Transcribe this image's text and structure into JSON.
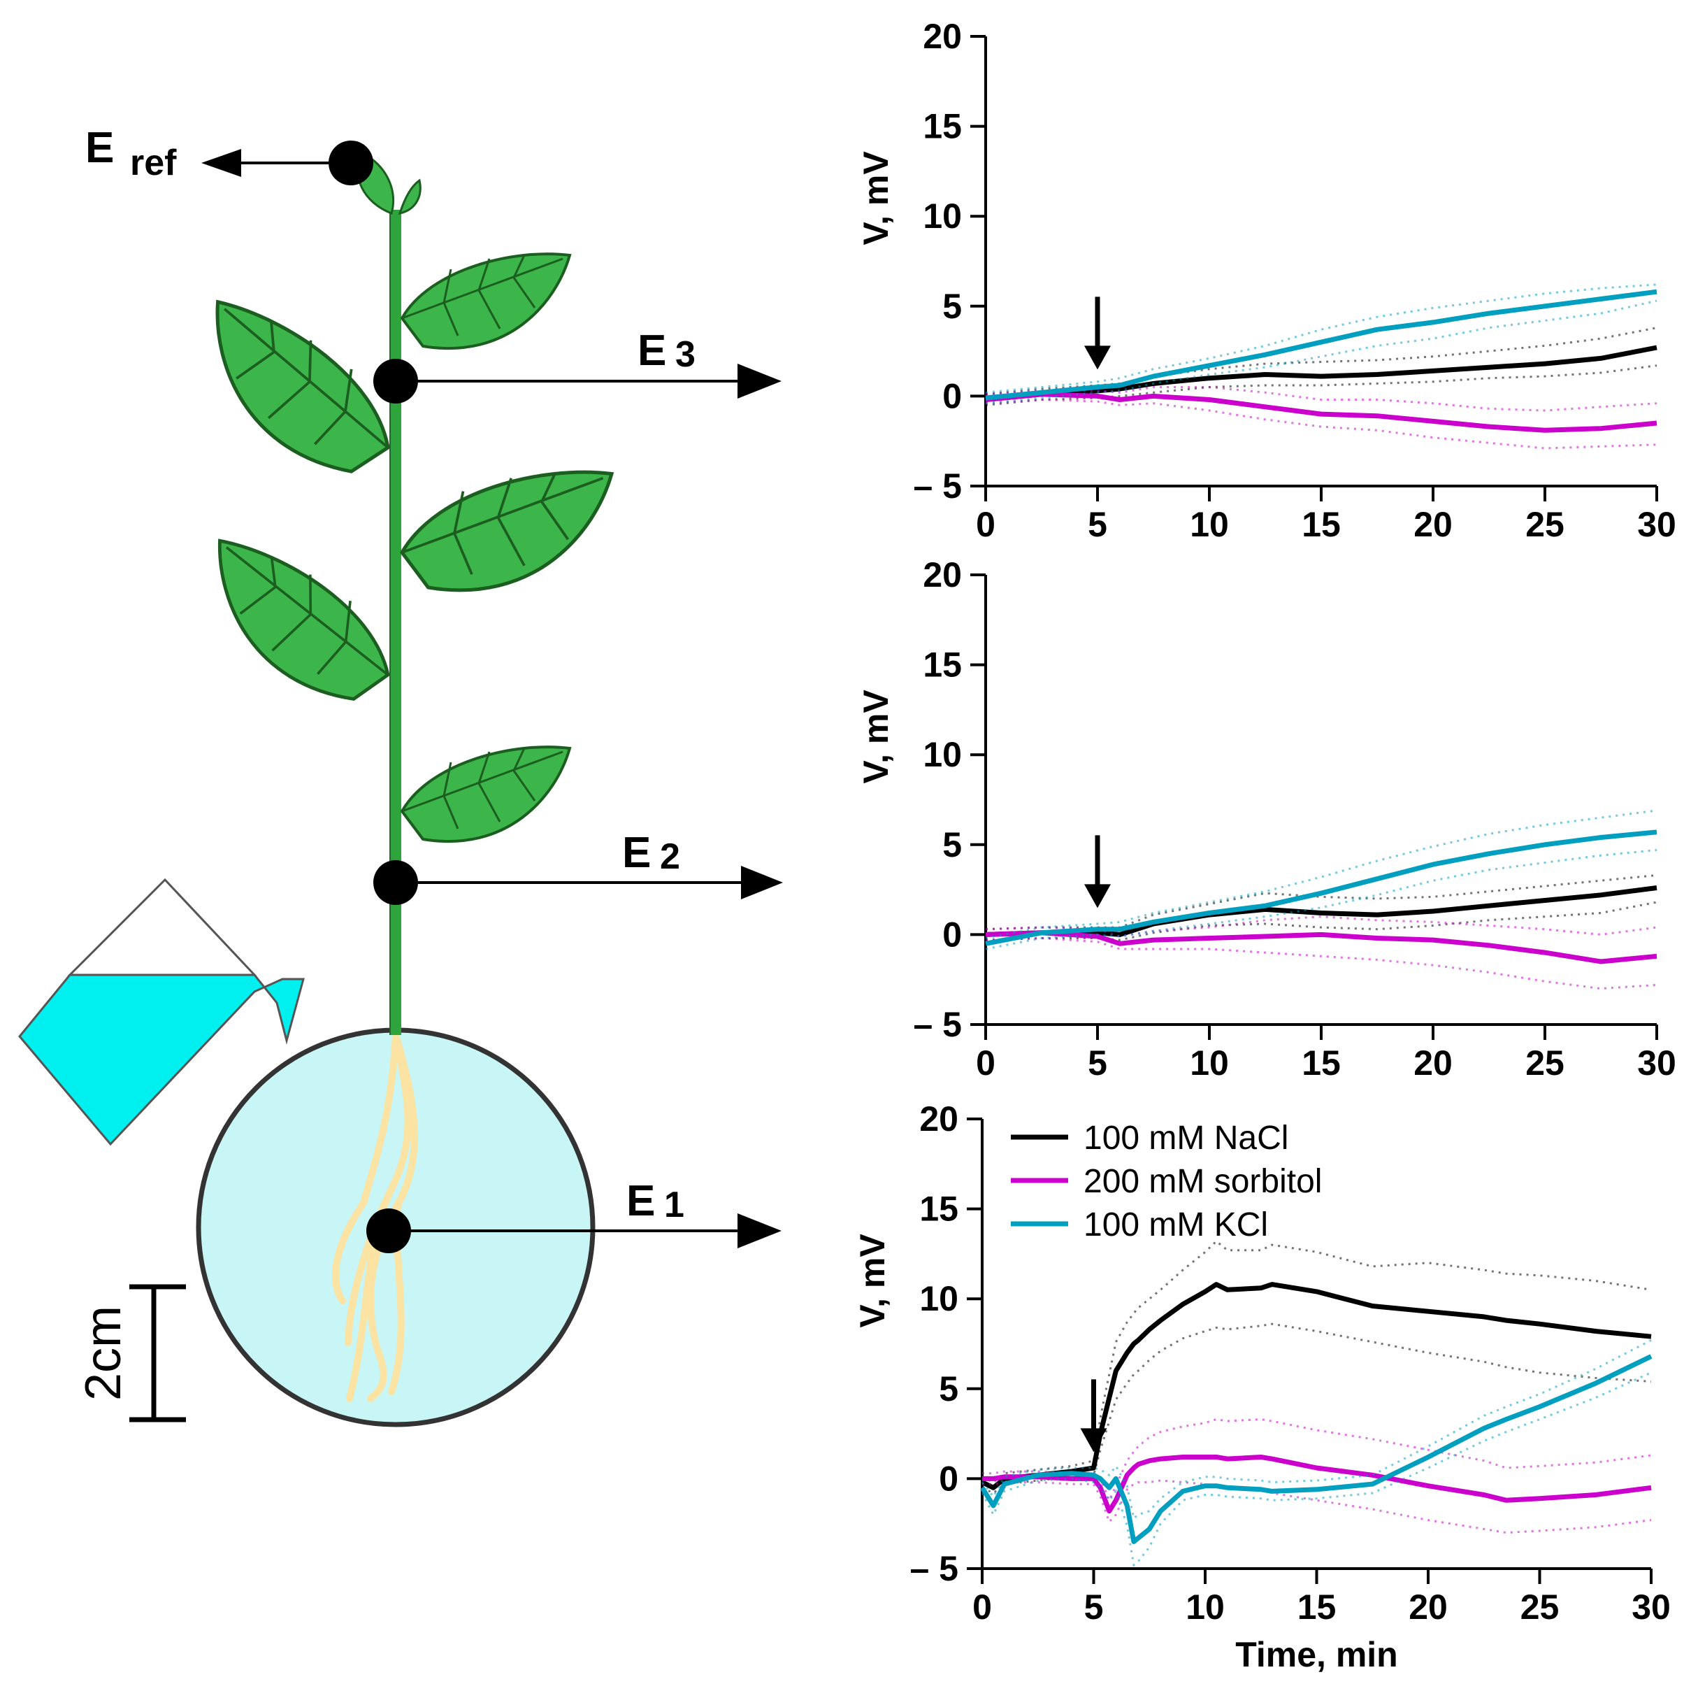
{
  "diagram": {
    "electrodes": [
      {
        "id": "ref",
        "main": "E",
        "sub": "ref"
      },
      {
        "id": "e3",
        "main": "E",
        "sub": "3"
      },
      {
        "id": "e2",
        "main": "E",
        "sub": "2"
      },
      {
        "id": "e1",
        "main": "E",
        "sub": "1"
      }
    ],
    "scale_bar_label": "2cm",
    "colors": {
      "leaf": "#3cb54a",
      "stem": "#2ea43c",
      "root": "#fbe3a4",
      "pot": "#c8f5f5",
      "solution": "#00f0f0"
    }
  },
  "legend": [
    {
      "label": "100 mM NaCl",
      "color": "#000000"
    },
    {
      "label": "200 mM sorbitol",
      "color": "#cc00cc"
    },
    {
      "label": "100 mM KCl",
      "color": "#009fbf"
    }
  ],
  "chart_data": [
    {
      "type": "line",
      "panel": "E3",
      "xlabel": "",
      "ylabel": "V, mV",
      "xlim": [
        0,
        30
      ],
      "ylim": [
        -5,
        20
      ],
      "xticks": [
        0,
        5,
        10,
        15,
        20,
        25,
        30
      ],
      "yticks": [
        -5,
        0,
        5,
        10,
        15,
        20
      ],
      "ytick_labels": [
        "– 5",
        "0",
        "5",
        "10",
        "15",
        "20"
      ],
      "stimulus_arrow_x": 5,
      "x": [
        0,
        2.5,
        5,
        6,
        7.5,
        10,
        12.5,
        15,
        17.5,
        20,
        22.5,
        25,
        27.5,
        30
      ],
      "series": [
        {
          "name": "100 mM NaCl",
          "color": "#000000",
          "values": [
            -0.2,
            0.1,
            0.3,
            0.4,
            0.7,
            1.0,
            1.2,
            1.1,
            1.2,
            1.4,
            1.6,
            1.8,
            2.1,
            2.7
          ],
          "lower": [
            -0.5,
            -0.2,
            -0.1,
            0.0,
            0.2,
            0.5,
            0.6,
            0.6,
            0.7,
            0.8,
            1.0,
            1.1,
            1.3,
            1.7
          ],
          "upper": [
            0.1,
            0.4,
            0.6,
            0.7,
            1.1,
            1.5,
            1.8,
            1.9,
            2.0,
            2.2,
            2.5,
            2.8,
            3.2,
            3.8
          ]
        },
        {
          "name": "200 mM sorbitol",
          "color": "#cc00cc",
          "values": [
            -0.2,
            0.1,
            0.0,
            -0.2,
            0.0,
            -0.2,
            -0.6,
            -1.0,
            -1.1,
            -1.4,
            -1.7,
            -1.9,
            -1.8,
            -1.5
          ],
          "lower": [
            -0.4,
            -0.2,
            -0.3,
            -0.5,
            -0.4,
            -0.8,
            -1.3,
            -1.7,
            -1.9,
            -2.3,
            -2.6,
            -2.9,
            -2.8,
            -2.7
          ],
          "upper": [
            0.1,
            0.3,
            0.3,
            0.2,
            0.5,
            0.5,
            0.2,
            -0.2,
            -0.2,
            -0.4,
            -0.7,
            -0.8,
            -0.6,
            -0.4
          ]
        },
        {
          "name": "100 mM KCl",
          "color": "#009fbf",
          "values": [
            -0.1,
            0.2,
            0.5,
            0.6,
            1.1,
            1.7,
            2.3,
            3.0,
            3.7,
            4.1,
            4.6,
            5.0,
            5.4,
            5.8
          ],
          "lower": [
            -0.4,
            -0.1,
            0.2,
            0.3,
            0.7,
            1.2,
            1.6,
            2.2,
            2.8,
            3.2,
            3.8,
            4.2,
            4.6,
            5.3
          ],
          "upper": [
            0.2,
            0.5,
            0.8,
            1.0,
            1.5,
            2.1,
            2.8,
            3.7,
            4.4,
            4.9,
            5.3,
            5.7,
            6.0,
            6.2
          ]
        }
      ]
    },
    {
      "type": "line",
      "panel": "E2",
      "xlabel": "",
      "ylabel": "V, mV",
      "xlim": [
        0,
        30
      ],
      "ylim": [
        -5,
        20
      ],
      "xticks": [
        0,
        5,
        10,
        15,
        20,
        25,
        30
      ],
      "yticks": [
        -5,
        0,
        5,
        10,
        15,
        20
      ],
      "ytick_labels": [
        "– 5",
        "0",
        "5",
        "10",
        "15",
        "20"
      ],
      "stimulus_arrow_x": 5,
      "x": [
        0,
        2.5,
        5,
        6,
        7.5,
        10,
        12.5,
        15,
        17.5,
        20,
        22.5,
        25,
        27.5,
        30
      ],
      "series": [
        {
          "name": "100 mM NaCl",
          "color": "#000000",
          "values": [
            0.0,
            0.1,
            0.1,
            0.0,
            0.6,
            1.1,
            1.4,
            1.2,
            1.1,
            1.3,
            1.6,
            1.9,
            2.2,
            2.6
          ],
          "lower": [
            -0.3,
            -0.2,
            -0.2,
            -0.3,
            0.1,
            0.5,
            0.6,
            0.4,
            0.3,
            0.5,
            0.8,
            1.0,
            1.2,
            1.8
          ],
          "upper": [
            0.3,
            0.4,
            0.4,
            0.4,
            1.1,
            1.7,
            2.3,
            2.1,
            2.0,
            2.1,
            2.4,
            2.7,
            3.0,
            3.3
          ]
        },
        {
          "name": "200 mM sorbitol",
          "color": "#cc00cc",
          "values": [
            0.0,
            0.1,
            -0.1,
            -0.5,
            -0.3,
            -0.2,
            -0.1,
            0.0,
            -0.2,
            -0.3,
            -0.6,
            -1.0,
            -1.5,
            -1.2
          ],
          "lower": [
            -0.3,
            -0.2,
            -0.4,
            -0.8,
            -0.8,
            -0.8,
            -1.0,
            -1.2,
            -1.4,
            -1.7,
            -2.1,
            -2.6,
            -3.0,
            -2.8
          ],
          "upper": [
            0.3,
            0.4,
            0.3,
            -0.1,
            0.2,
            0.4,
            0.8,
            1.0,
            0.8,
            0.7,
            0.5,
            0.3,
            0.0,
            0.4
          ]
        },
        {
          "name": "100 mM KCl",
          "color": "#009fbf",
          "values": [
            -0.5,
            0.1,
            0.3,
            0.3,
            0.7,
            1.2,
            1.6,
            2.3,
            3.1,
            3.9,
            4.5,
            5.0,
            5.4,
            5.7
          ],
          "lower": [
            -0.8,
            -0.2,
            0.0,
            -0.1,
            0.2,
            0.6,
            1.0,
            1.5,
            2.2,
            3.0,
            3.6,
            4.0,
            4.4,
            4.7
          ],
          "upper": [
            -0.2,
            0.4,
            0.6,
            0.7,
            1.2,
            1.8,
            2.4,
            3.2,
            4.1,
            4.9,
            5.6,
            6.1,
            6.5,
            6.9
          ]
        }
      ]
    },
    {
      "type": "line",
      "panel": "E1",
      "xlabel": "Time, min",
      "ylabel": "V, mV",
      "xlim": [
        0,
        30
      ],
      "ylim": [
        -5,
        20
      ],
      "xticks": [
        0,
        5,
        10,
        15,
        20,
        25,
        30
      ],
      "yticks": [
        -5,
        0,
        5,
        10,
        15,
        20
      ],
      "ytick_labels": [
        "– 5",
        "0",
        "5",
        "10",
        "15",
        "20"
      ],
      "stimulus_arrow_x": 5,
      "x": [
        0,
        0.5,
        1,
        2.5,
        4,
        5,
        5.3,
        5.7,
        6,
        6.5,
        6.8,
        7,
        7.5,
        8,
        9,
        10,
        10.5,
        11,
        12.5,
        13,
        15,
        17.5,
        20,
        22.5,
        23.5,
        25,
        27.5,
        30
      ],
      "series": [
        {
          "name": "100 mM NaCl",
          "color": "#000000",
          "values": [
            -0.2,
            -0.5,
            0.0,
            0.2,
            0.4,
            0.6,
            2.5,
            4.5,
            6.0,
            7.0,
            7.5,
            7.7,
            8.3,
            8.8,
            9.7,
            10.4,
            10.8,
            10.5,
            10.6,
            10.8,
            10.4,
            9.6,
            9.3,
            9.0,
            8.8,
            8.6,
            8.2,
            7.9
          ],
          "lower": [
            -0.5,
            -0.8,
            -0.3,
            -0.1,
            0.1,
            0.2,
            1.6,
            3.2,
            4.4,
            5.3,
            5.8,
            6.0,
            6.6,
            7.1,
            7.8,
            8.2,
            8.4,
            8.3,
            8.5,
            8.6,
            8.2,
            7.6,
            7.0,
            6.5,
            6.2,
            5.9,
            5.6,
            5.4
          ],
          "upper": [
            0.1,
            -0.2,
            0.3,
            0.5,
            0.7,
            1.0,
            3.4,
            5.8,
            7.6,
            8.7,
            9.2,
            9.5,
            10.0,
            10.5,
            11.6,
            12.6,
            13.2,
            12.7,
            12.7,
            13.0,
            12.6,
            11.8,
            12.0,
            11.6,
            11.4,
            11.3,
            11.0,
            10.5
          ]
        },
        {
          "name": "200 mM sorbitol",
          "color": "#cc00cc",
          "values": [
            0.0,
            0.0,
            0.1,
            0.1,
            0.0,
            0.0,
            -0.5,
            -1.8,
            -1.2,
            0.2,
            0.6,
            0.8,
            1.0,
            1.1,
            1.2,
            1.2,
            1.2,
            1.1,
            1.2,
            1.1,
            0.6,
            0.2,
            -0.4,
            -0.9,
            -1.2,
            -1.1,
            -0.9,
            -0.5
          ],
          "lower": [
            -0.3,
            -0.3,
            -0.2,
            -0.2,
            -0.3,
            -0.3,
            -1.0,
            -2.4,
            -2.0,
            -0.6,
            -0.3,
            -0.2,
            -0.2,
            -0.1,
            -0.2,
            -0.3,
            -0.4,
            -0.5,
            -0.6,
            -0.8,
            -1.2,
            -1.7,
            -2.3,
            -2.8,
            -3.0,
            -2.9,
            -2.7,
            -2.3
          ],
          "upper": [
            0.3,
            0.3,
            0.4,
            0.4,
            0.3,
            0.3,
            0.0,
            -1.2,
            -0.4,
            1.0,
            1.5,
            1.8,
            2.3,
            2.6,
            2.9,
            3.1,
            3.3,
            3.2,
            3.3,
            3.2,
            2.7,
            2.2,
            1.6,
            1.0,
            0.6,
            0.7,
            0.9,
            1.3
          ]
        },
        {
          "name": "100 mM KCl",
          "color": "#009fbf",
          "values": [
            -0.5,
            -1.5,
            -0.3,
            0.2,
            0.3,
            0.2,
            0.0,
            -0.5,
            0.0,
            -1.5,
            -3.5,
            -3.3,
            -2.8,
            -1.8,
            -0.7,
            -0.4,
            -0.4,
            -0.5,
            -0.6,
            -0.7,
            -0.6,
            -0.3,
            1.2,
            2.8,
            3.3,
            4.0,
            5.3,
            6.8
          ],
          "lower": [
            -0.8,
            -2.0,
            -0.7,
            -0.1,
            0.0,
            -0.2,
            -0.5,
            -1.2,
            -0.7,
            -2.6,
            -4.8,
            -4.6,
            -3.8,
            -2.5,
            -1.2,
            -0.9,
            -0.9,
            -1.0,
            -1.1,
            -1.2,
            -1.1,
            -0.8,
            0.6,
            2.1,
            2.6,
            3.3,
            4.5,
            5.9
          ],
          "upper": [
            -0.2,
            -1.0,
            0.1,
            0.5,
            0.6,
            0.6,
            0.5,
            0.2,
            0.7,
            -0.4,
            -2.2,
            -2.0,
            -1.8,
            -1.1,
            -0.2,
            0.1,
            0.1,
            0.0,
            -0.1,
            -0.2,
            -0.1,
            0.2,
            1.8,
            3.5,
            4.0,
            4.7,
            6.1,
            7.7
          ]
        }
      ]
    }
  ]
}
